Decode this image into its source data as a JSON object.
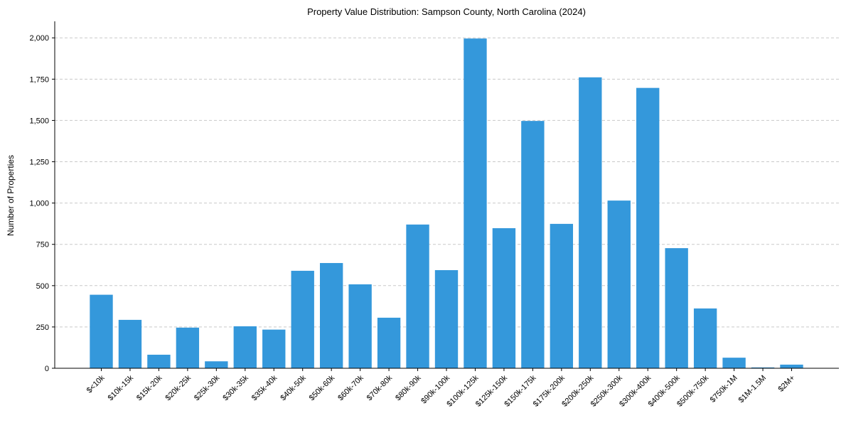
{
  "chart_data": {
    "type": "bar",
    "title": "Property Value Distribution: Sampson County, North Carolina (2024)",
    "xlabel": "",
    "ylabel": "Number of Properties",
    "ylim": [
      0,
      2100
    ],
    "yticks": [
      0,
      250,
      500,
      750,
      1000,
      1250,
      1500,
      1750,
      2000
    ],
    "ytick_labels": [
      "0",
      "250",
      "500",
      "750",
      "1,000",
      "1,250",
      "1,500",
      "1,750",
      "2,000"
    ],
    "grid": "y",
    "bar_color": "#3498db",
    "categories": [
      "$<10k",
      "$10k-15k",
      "$15k-20k",
      "$20k-25k",
      "$25k-30k",
      "$30k-35k",
      "$35k-40k",
      "$40k-50k",
      "$50k-60k",
      "$60k-70k",
      "$70k-80k",
      "$80k-90k",
      "$90k-100k",
      "$100k-125k",
      "$125k-150k",
      "$150k-175k",
      "$175k-200k",
      "$200k-250k",
      "$250k-300k",
      "$300k-400k",
      "$400k-500k",
      "$500k-750k",
      "$750k-1M",
      "$1M-1.5M",
      "$2M+"
    ],
    "values": [
      445,
      293,
      82,
      246,
      42,
      254,
      234,
      590,
      637,
      508,
      306,
      870,
      594,
      1996,
      848,
      1497,
      874,
      1761,
      1015,
      1697,
      727,
      362,
      64,
      5,
      22
    ]
  }
}
